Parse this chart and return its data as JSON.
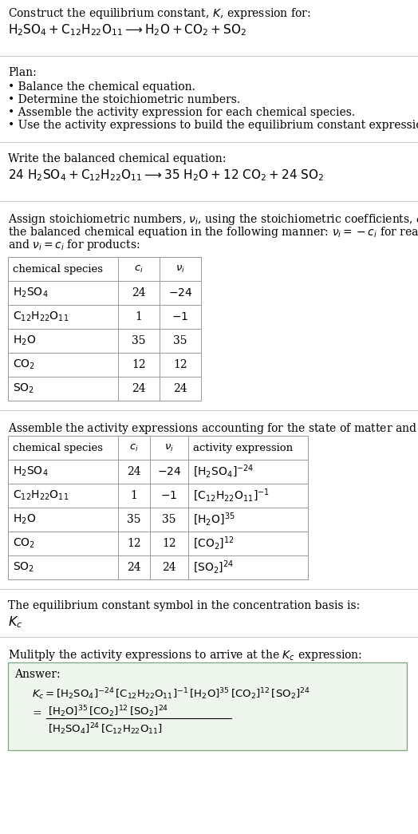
{
  "title_line1": "Construct the equilibrium constant, $K$, expression for:",
  "title_line2": "$\\mathrm{H_2SO_4 + C_{12}H_{22}O_{11} \\longrightarrow H_2O + CO_2 + SO_2}$",
  "plan_header": "Plan:",
  "plan_items": [
    "• Balance the chemical equation.",
    "• Determine the stoichiometric numbers.",
    "• Assemble the activity expression for each chemical species.",
    "• Use the activity expressions to build the equilibrium constant expression."
  ],
  "balanced_header": "Write the balanced chemical equation:",
  "balanced_eq": "$\\mathrm{24\\ H_2SO_4 + C_{12}H_{22}O_{11} \\longrightarrow 35\\ H_2O + 12\\ CO_2 + 24\\ SO_2}$",
  "table1_headers": [
    "chemical species",
    "$c_i$",
    "$\\nu_i$"
  ],
  "table1_rows": [
    [
      "$\\mathrm{H_2SO_4}$",
      "24",
      "$-24$"
    ],
    [
      "$\\mathrm{C_{12}H_{22}O_{11}}$",
      "1",
      "$-1$"
    ],
    [
      "$\\mathrm{H_2O}$",
      "35",
      "35"
    ],
    [
      "$\\mathrm{CO_2}$",
      "12",
      "12"
    ],
    [
      "$\\mathrm{SO_2}$",
      "24",
      "24"
    ]
  ],
  "activity_header": "Assemble the activity expressions accounting for the state of matter and $\\nu_i$:",
  "table2_headers": [
    "chemical species",
    "$c_i$",
    "$\\nu_i$",
    "activity expression"
  ],
  "table2_rows": [
    [
      "$\\mathrm{H_2SO_4}$",
      "24",
      "$-24$",
      "$[\\mathrm{H_2SO_4}]^{-24}$"
    ],
    [
      "$\\mathrm{C_{12}H_{22}O_{11}}$",
      "1",
      "$-1$",
      "$[\\mathrm{C_{12}H_{22}O_{11}}]^{-1}$"
    ],
    [
      "$\\mathrm{H_2O}$",
      "35",
      "35",
      "$[\\mathrm{H_2O}]^{35}$"
    ],
    [
      "$\\mathrm{CO_2}$",
      "12",
      "12",
      "$[\\mathrm{CO_2}]^{12}$"
    ],
    [
      "$\\mathrm{SO_2}$",
      "24",
      "24",
      "$[\\mathrm{SO_2}]^{24}$"
    ]
  ],
  "kc_header": "The equilibrium constant symbol in the concentration basis is:",
  "kc_symbol": "$K_c$",
  "multiply_header": "Mulitply the activity expressions to arrive at the $K_c$ expression:",
  "answer_label": "Answer:",
  "answer_line1": "$K_c = [\\mathrm{H_2SO_4}]^{-24}\\, [\\mathrm{C_{12}H_{22}O_{11}}]^{-1}\\, [\\mathrm{H_2O}]^{35}\\, [\\mathrm{CO_2}]^{12}\\, [\\mathrm{SO_2}]^{24}$",
  "answer_line2a": "$[\\mathrm{H_2O}]^{35}\\, [\\mathrm{CO_2}]^{12}\\, [\\mathrm{SO_2}]^{24}$",
  "answer_line2b": "$[\\mathrm{H_2SO_4}]^{24}\\, [\\mathrm{C_{12}H_{22}O_{11}}]$",
  "bg_color": "#ffffff",
  "text_color": "#000000",
  "table_border_color": "#999999",
  "answer_box_bg": "#eef6ee",
  "answer_box_border": "#88aa88",
  "separator_color": "#cccccc",
  "font_size": 10.0,
  "stoich_lines": [
    "Assign stoichiometric numbers, $\\nu_i$, using the stoichiometric coefficients, $c_i$, from",
    "the balanced chemical equation in the following manner: $\\nu_i = -c_i$ for reactants",
    "and $\\nu_i = c_i$ for products:"
  ]
}
